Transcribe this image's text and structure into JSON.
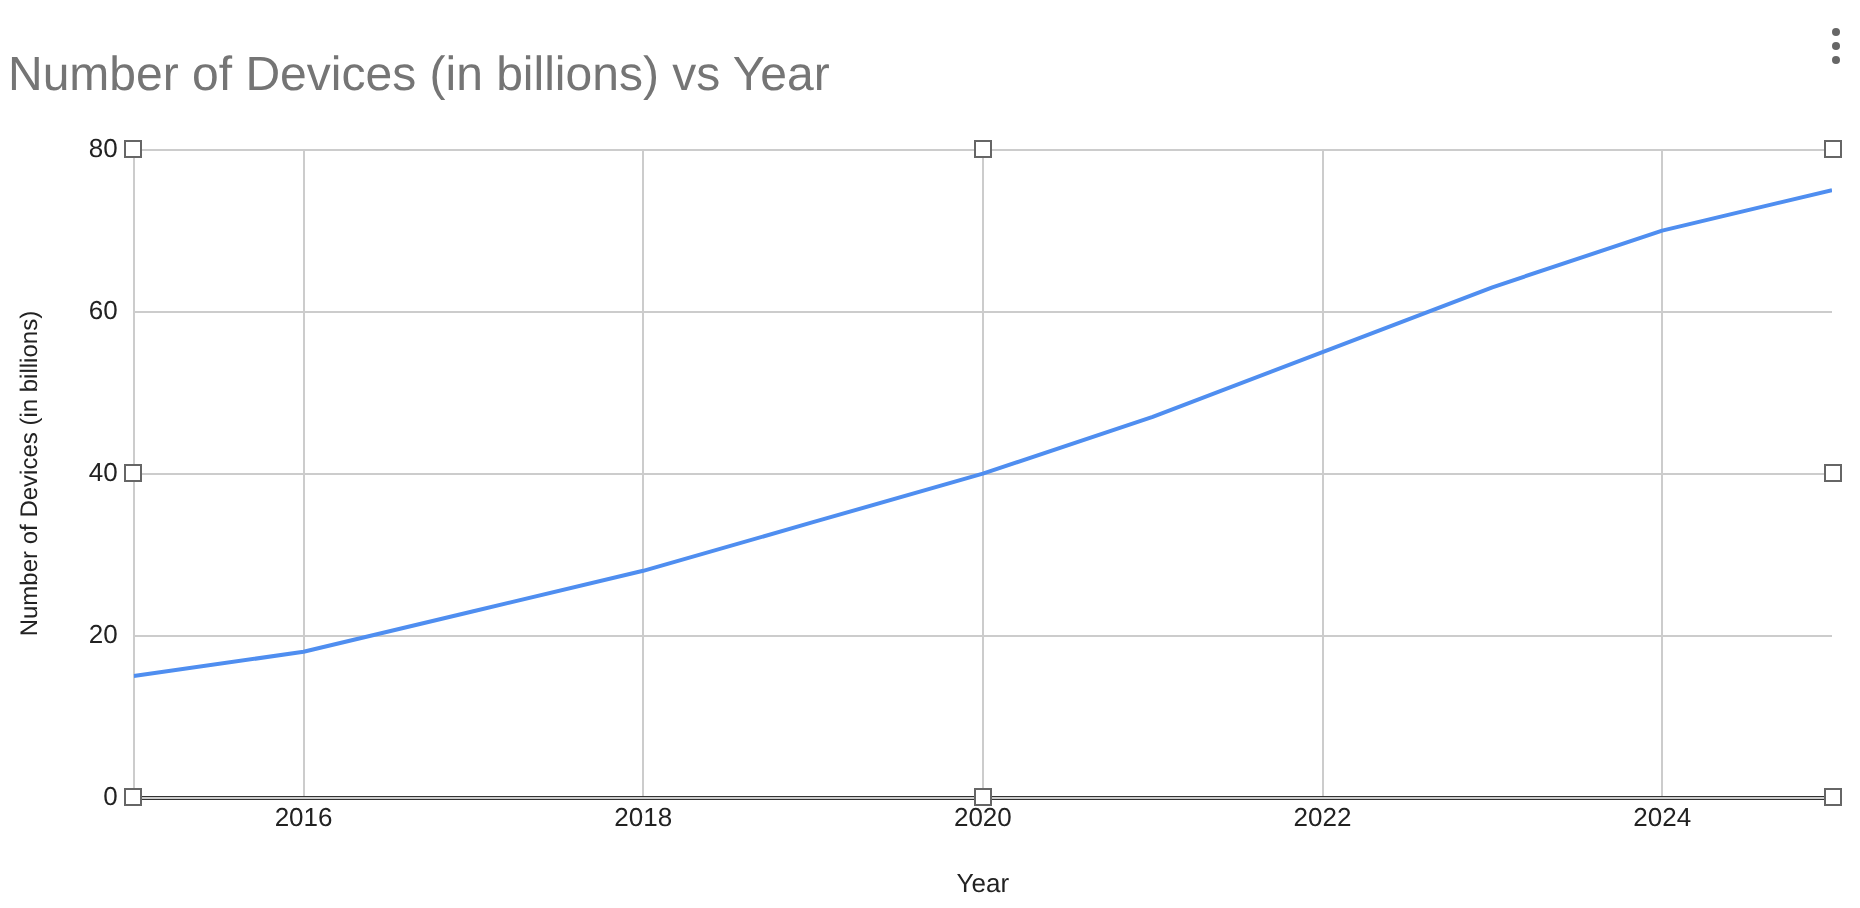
{
  "chart_data": {
    "type": "line",
    "title": "Number of Devices (in billions) vs Year",
    "xlabel": "Year",
    "ylabel": "Number of Devices (in billions)",
    "x": [
      2015,
      2016,
      2017,
      2018,
      2019,
      2020,
      2021,
      2022,
      2023,
      2024,
      2025
    ],
    "series": [
      {
        "color": "#4f8ef0",
        "values": [
          15,
          18,
          23,
          28,
          34,
          40,
          47,
          55,
          63,
          70,
          75
        ]
      }
    ],
    "xlim": [
      2015,
      2025
    ],
    "xticks": [
      2016,
      2018,
      2020,
      2022,
      2024
    ],
    "ylim": [
      0,
      80
    ],
    "yticks": [
      0,
      20,
      40,
      60,
      80
    ],
    "grid": true,
    "legend": false,
    "marker": "none",
    "line_style": "solid"
  }
}
